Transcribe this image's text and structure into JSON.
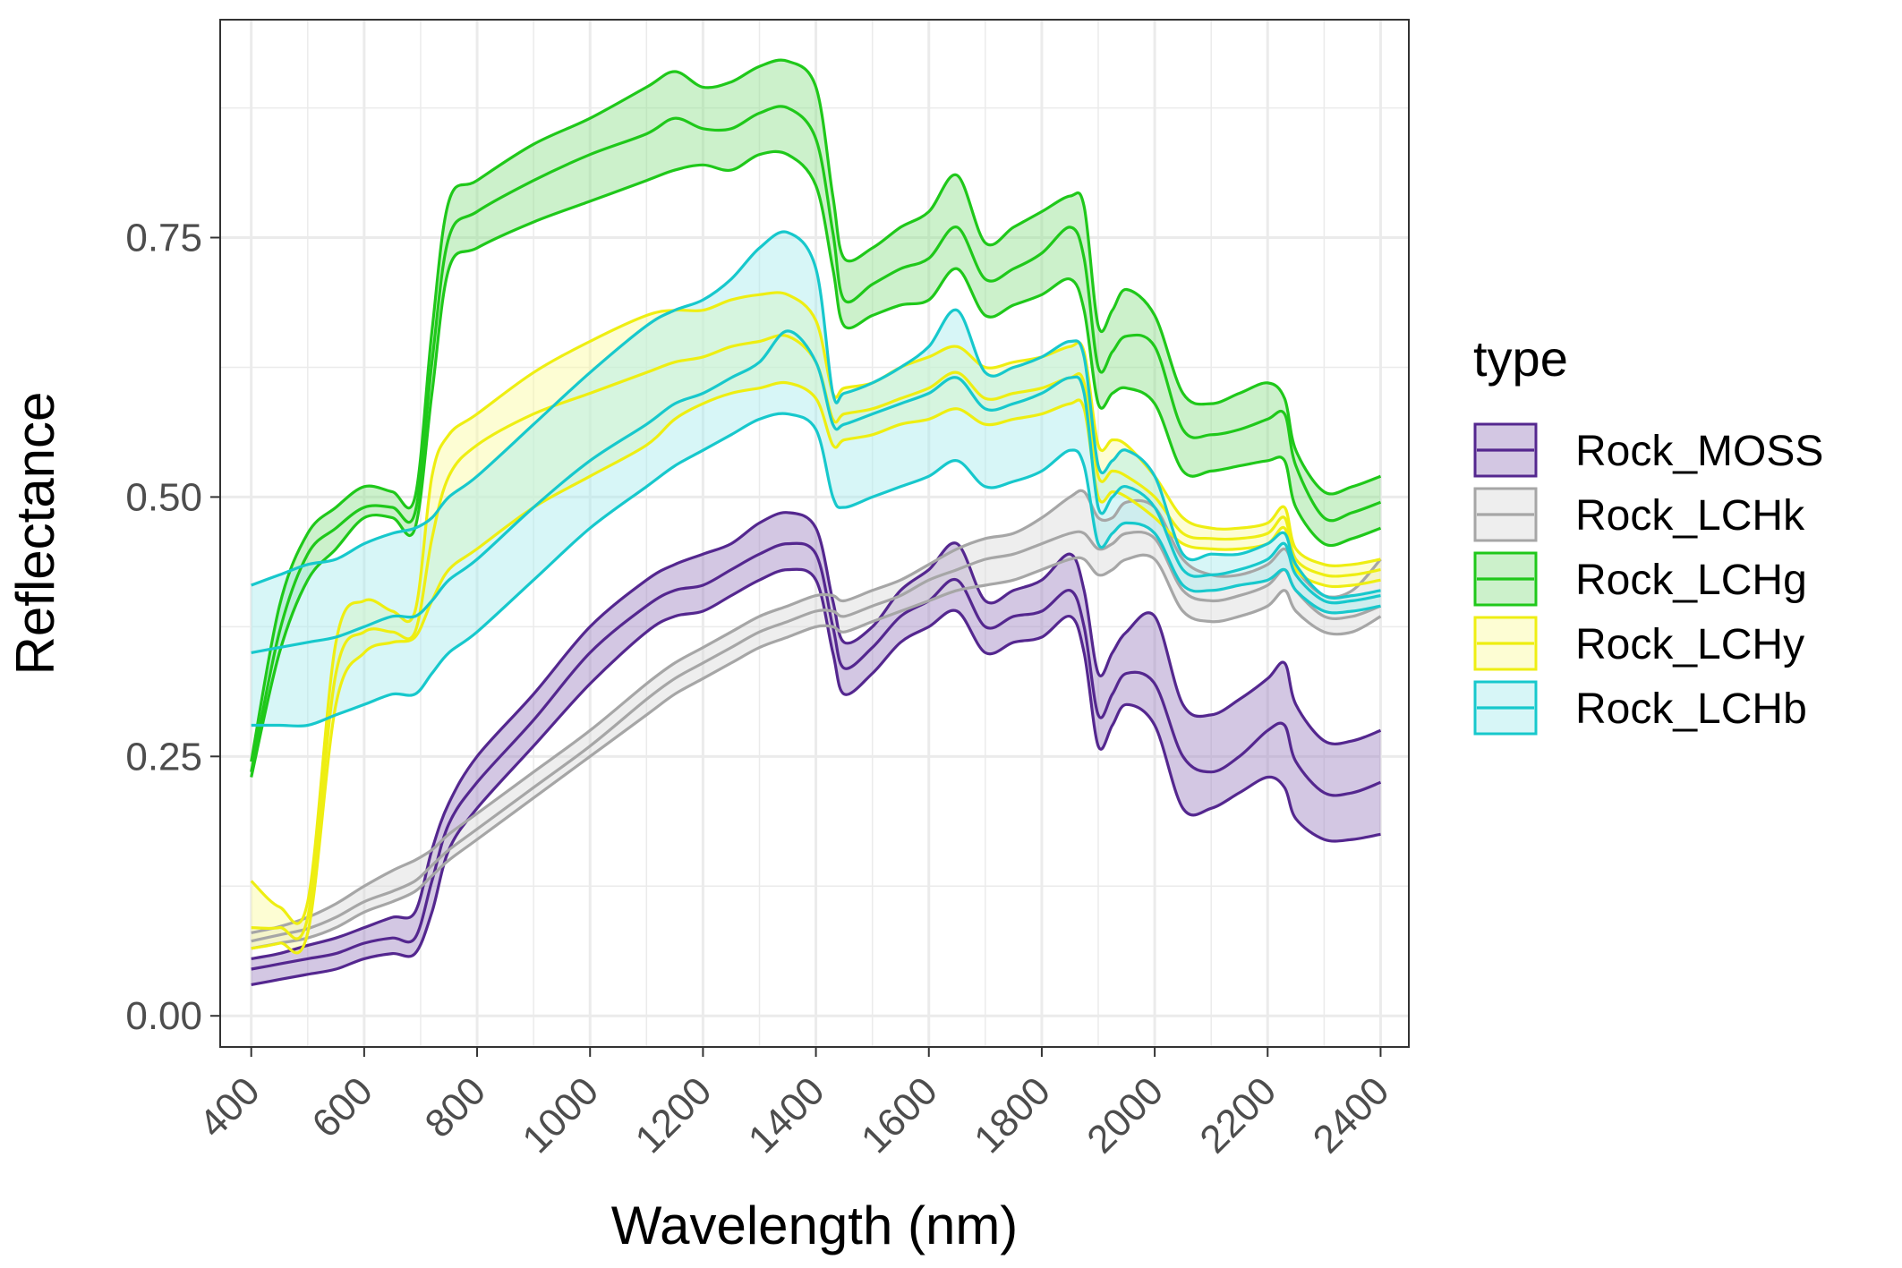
{
  "chart_data": {
    "type": "area",
    "xlabel": "Wavelength (nm)",
    "ylabel": "Reflectance",
    "xlim": [
      345,
      2450
    ],
    "ylim": [
      -0.03,
      0.96
    ],
    "x_ticks": [
      400,
      600,
      800,
      1000,
      1200,
      1400,
      1600,
      1800,
      2000,
      2200,
      2400
    ],
    "y_ticks": [
      0.0,
      0.25,
      0.5,
      0.75
    ],
    "y_tick_labels": [
      "0.00",
      "0.25",
      "0.50",
      "0.75"
    ],
    "grid": true,
    "legend": {
      "title": "type",
      "position": "right"
    },
    "x": [
      400,
      450,
      500,
      550,
      600,
      650,
      690,
      720,
      750,
      800,
      900,
      1000,
      1100,
      1150,
      1200,
      1250,
      1300,
      1350,
      1400,
      1430,
      1450,
      1500,
      1550,
      1600,
      1650,
      1700,
      1750,
      1800,
      1850,
      1875,
      1900,
      1925,
      1950,
      2000,
      2050,
      2100,
      2150,
      2200,
      2230,
      2250,
      2300,
      2350,
      2400
    ],
    "series": [
      {
        "name": "Rock_MOSS",
        "color": "#54278f",
        "fill": "#9e82c1",
        "lower": [
          0.03,
          0.035,
          0.04,
          0.045,
          0.055,
          0.06,
          0.06,
          0.1,
          0.16,
          0.2,
          0.26,
          0.32,
          0.37,
          0.385,
          0.39,
          0.405,
          0.42,
          0.43,
          0.42,
          0.35,
          0.31,
          0.33,
          0.36,
          0.375,
          0.39,
          0.35,
          0.36,
          0.365,
          0.385,
          0.35,
          0.26,
          0.28,
          0.3,
          0.28,
          0.2,
          0.2,
          0.215,
          0.23,
          0.22,
          0.19,
          0.17,
          0.17,
          0.175
        ],
        "mean": [
          0.045,
          0.05,
          0.055,
          0.06,
          0.07,
          0.075,
          0.075,
          0.13,
          0.185,
          0.225,
          0.285,
          0.35,
          0.395,
          0.41,
          0.415,
          0.43,
          0.445,
          0.455,
          0.445,
          0.375,
          0.335,
          0.355,
          0.385,
          0.4,
          0.42,
          0.375,
          0.385,
          0.39,
          0.41,
          0.375,
          0.29,
          0.31,
          0.33,
          0.32,
          0.25,
          0.235,
          0.25,
          0.275,
          0.28,
          0.245,
          0.215,
          0.215,
          0.225
        ],
        "upper": [
          0.055,
          0.06,
          0.068,
          0.075,
          0.085,
          0.095,
          0.1,
          0.16,
          0.205,
          0.25,
          0.31,
          0.375,
          0.42,
          0.435,
          0.445,
          0.455,
          0.475,
          0.485,
          0.47,
          0.4,
          0.36,
          0.375,
          0.41,
          0.43,
          0.455,
          0.4,
          0.41,
          0.42,
          0.445,
          0.41,
          0.33,
          0.35,
          0.37,
          0.385,
          0.3,
          0.29,
          0.305,
          0.325,
          0.34,
          0.3,
          0.265,
          0.265,
          0.275
        ]
      },
      {
        "name": "Rock_LCHk",
        "color": "#a6a6a6",
        "fill": "#d9d9d9",
        "lower": [
          0.065,
          0.07,
          0.075,
          0.085,
          0.1,
          0.11,
          0.12,
          0.135,
          0.15,
          0.17,
          0.21,
          0.25,
          0.29,
          0.31,
          0.325,
          0.34,
          0.355,
          0.365,
          0.375,
          0.375,
          0.37,
          0.38,
          0.39,
          0.4,
          0.41,
          0.415,
          0.42,
          0.43,
          0.44,
          0.44,
          0.425,
          0.43,
          0.44,
          0.44,
          0.39,
          0.38,
          0.385,
          0.395,
          0.41,
          0.39,
          0.37,
          0.37,
          0.385
        ],
        "mean": [
          0.072,
          0.078,
          0.084,
          0.095,
          0.11,
          0.12,
          0.13,
          0.145,
          0.16,
          0.18,
          0.22,
          0.26,
          0.305,
          0.325,
          0.34,
          0.355,
          0.37,
          0.38,
          0.39,
          0.39,
          0.385,
          0.395,
          0.405,
          0.42,
          0.43,
          0.44,
          0.445,
          0.455,
          0.465,
          0.465,
          0.45,
          0.455,
          0.465,
          0.46,
          0.41,
          0.4,
          0.405,
          0.415,
          0.43,
          0.41,
          0.385,
          0.385,
          0.395
        ],
        "upper": [
          0.08,
          0.086,
          0.095,
          0.108,
          0.125,
          0.14,
          0.15,
          0.16,
          0.175,
          0.195,
          0.235,
          0.275,
          0.32,
          0.34,
          0.355,
          0.37,
          0.385,
          0.395,
          0.405,
          0.405,
          0.4,
          0.41,
          0.42,
          0.435,
          0.45,
          0.46,
          0.465,
          0.48,
          0.5,
          0.505,
          0.48,
          0.48,
          0.495,
          0.49,
          0.44,
          0.425,
          0.425,
          0.435,
          0.45,
          0.43,
          0.405,
          0.41,
          0.44
        ]
      },
      {
        "name": "Rock_LCHg",
        "color": "#1fc81a",
        "fill": "#8ee18b",
        "lower": [
          0.23,
          0.35,
          0.42,
          0.45,
          0.48,
          0.48,
          0.47,
          0.6,
          0.72,
          0.74,
          0.765,
          0.785,
          0.805,
          0.815,
          0.82,
          0.815,
          0.83,
          0.83,
          0.8,
          0.72,
          0.665,
          0.675,
          0.685,
          0.69,
          0.72,
          0.675,
          0.685,
          0.695,
          0.71,
          0.68,
          0.59,
          0.6,
          0.605,
          0.59,
          0.525,
          0.525,
          0.53,
          0.535,
          0.535,
          0.49,
          0.455,
          0.46,
          0.47
        ],
        "mean": [
          0.235,
          0.37,
          0.445,
          0.47,
          0.49,
          0.49,
          0.485,
          0.63,
          0.75,
          0.775,
          0.805,
          0.83,
          0.85,
          0.865,
          0.855,
          0.855,
          0.87,
          0.875,
          0.845,
          0.755,
          0.69,
          0.705,
          0.72,
          0.73,
          0.76,
          0.71,
          0.72,
          0.735,
          0.76,
          0.73,
          0.625,
          0.64,
          0.655,
          0.645,
          0.565,
          0.56,
          0.565,
          0.575,
          0.58,
          0.53,
          0.48,
          0.485,
          0.495
        ],
        "upper": [
          0.245,
          0.395,
          0.465,
          0.49,
          0.51,
          0.505,
          0.5,
          0.66,
          0.785,
          0.805,
          0.84,
          0.865,
          0.895,
          0.91,
          0.895,
          0.9,
          0.915,
          0.92,
          0.895,
          0.79,
          0.73,
          0.74,
          0.76,
          0.775,
          0.81,
          0.745,
          0.76,
          0.775,
          0.79,
          0.78,
          0.665,
          0.68,
          0.7,
          0.675,
          0.6,
          0.59,
          0.6,
          0.61,
          0.595,
          0.545,
          0.505,
          0.51,
          0.52
        ]
      },
      {
        "name": "Rock_LCHy",
        "color": "#eeee12",
        "fill": "#fafa9e",
        "lower": [
          0.065,
          0.07,
          0.08,
          0.3,
          0.35,
          0.36,
          0.365,
          0.4,
          0.43,
          0.45,
          0.49,
          0.52,
          0.55,
          0.575,
          0.59,
          0.6,
          0.605,
          0.61,
          0.595,
          0.55,
          0.555,
          0.56,
          0.57,
          0.575,
          0.585,
          0.57,
          0.575,
          0.58,
          0.59,
          0.585,
          0.5,
          0.505,
          0.5,
          0.48,
          0.455,
          0.45,
          0.45,
          0.455,
          0.47,
          0.43,
          0.415,
          0.415,
          0.42
        ],
        "mean": [
          0.085,
          0.085,
          0.095,
          0.33,
          0.37,
          0.37,
          0.37,
          0.46,
          0.52,
          0.55,
          0.58,
          0.6,
          0.62,
          0.63,
          0.635,
          0.645,
          0.65,
          0.655,
          0.63,
          0.575,
          0.58,
          0.585,
          0.595,
          0.605,
          0.62,
          0.595,
          0.6,
          0.605,
          0.615,
          0.61,
          0.52,
          0.525,
          0.52,
          0.5,
          0.465,
          0.46,
          0.46,
          0.465,
          0.48,
          0.44,
          0.425,
          0.425,
          0.43
        ],
        "upper": [
          0.13,
          0.105,
          0.11,
          0.36,
          0.4,
          0.39,
          0.39,
          0.52,
          0.56,
          0.58,
          0.62,
          0.65,
          0.675,
          0.68,
          0.68,
          0.69,
          0.695,
          0.695,
          0.67,
          0.6,
          0.605,
          0.61,
          0.625,
          0.635,
          0.645,
          0.625,
          0.63,
          0.635,
          0.645,
          0.64,
          0.55,
          0.555,
          0.55,
          0.52,
          0.48,
          0.47,
          0.47,
          0.475,
          0.49,
          0.45,
          0.435,
          0.435,
          0.44
        ]
      },
      {
        "name": "Rock_LCHb",
        "color": "#17c8cc",
        "fill": "#a6ebed",
        "lower": [
          0.28,
          0.28,
          0.28,
          0.29,
          0.3,
          0.31,
          0.31,
          0.33,
          0.35,
          0.37,
          0.42,
          0.47,
          0.51,
          0.53,
          0.545,
          0.56,
          0.575,
          0.58,
          0.565,
          0.5,
          0.49,
          0.5,
          0.51,
          0.52,
          0.535,
          0.51,
          0.515,
          0.525,
          0.545,
          0.53,
          0.455,
          0.465,
          0.475,
          0.465,
          0.415,
          0.41,
          0.415,
          0.42,
          0.43,
          0.41,
          0.39,
          0.39,
          0.395
        ],
        "mean": [
          0.35,
          0.355,
          0.36,
          0.365,
          0.375,
          0.385,
          0.385,
          0.4,
          0.42,
          0.44,
          0.49,
          0.535,
          0.57,
          0.59,
          0.6,
          0.615,
          0.63,
          0.66,
          0.63,
          0.57,
          0.57,
          0.58,
          0.59,
          0.6,
          0.615,
          0.585,
          0.59,
          0.6,
          0.615,
          0.6,
          0.49,
          0.5,
          0.51,
          0.49,
          0.43,
          0.425,
          0.43,
          0.44,
          0.455,
          0.425,
          0.4,
          0.4,
          0.405
        ],
        "upper": [
          0.415,
          0.425,
          0.435,
          0.44,
          0.455,
          0.465,
          0.47,
          0.48,
          0.5,
          0.52,
          0.57,
          0.62,
          0.665,
          0.68,
          0.69,
          0.71,
          0.74,
          0.755,
          0.72,
          0.6,
          0.6,
          0.61,
          0.625,
          0.645,
          0.68,
          0.62,
          0.625,
          0.635,
          0.65,
          0.635,
          0.53,
          0.535,
          0.545,
          0.52,
          0.445,
          0.445,
          0.445,
          0.455,
          0.465,
          0.435,
          0.405,
          0.405,
          0.41
        ]
      }
    ]
  }
}
